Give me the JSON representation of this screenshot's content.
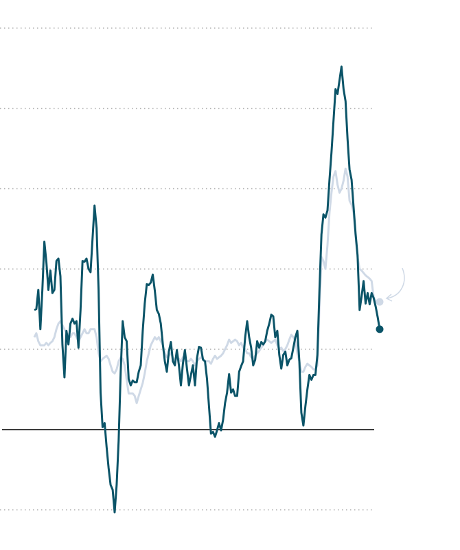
{
  "chart_data": {
    "type": "line",
    "ylim": [
      -1.5,
      5.35
    ],
    "yticks": [
      -1,
      0,
      1,
      2,
      3,
      4,
      5
    ],
    "grid": true,
    "series": [
      {
        "color": "#cfd9e6",
        "values": [
          1.15,
          1.2,
          1.1,
          1.05,
          1.05,
          1.05,
          1.08,
          1.05,
          1.08,
          1.1,
          1.15,
          1.25,
          1.32,
          1.35,
          1.3,
          1.25,
          1.2,
          1.18,
          1.15,
          1.2,
          1.2,
          1.15,
          1.1,
          1.15,
          1.2,
          1.25,
          1.2,
          1.2,
          1.25,
          1.25,
          1.25,
          1.15,
          0.95,
          0.85,
          0.88,
          0.9,
          0.92,
          0.88,
          0.8,
          0.72,
          0.7,
          0.75,
          0.85,
          0.9,
          0.88,
          0.8,
          0.62,
          0.45,
          0.45,
          0.45,
          0.42,
          0.33,
          0.42,
          0.5,
          0.58,
          0.7,
          0.85,
          0.95,
          1.05,
          1.1,
          1.15,
          1.12,
          1.15,
          1.1,
          1.05,
          0.95,
          0.9,
          0.92,
          0.95,
          0.9,
          0.85,
          0.9,
          0.88,
          0.85,
          0.9,
          0.88,
          0.85,
          0.85,
          0.88,
          0.85,
          0.8,
          0.85,
          0.88,
          0.9,
          0.88,
          0.85,
          0.85,
          0.85,
          0.82,
          0.88,
          0.92,
          0.88,
          0.9,
          0.92,
          0.95,
          1.0,
          1.05,
          1.12,
          1.08,
          1.1,
          1.12,
          1.1,
          1.05,
          1.08,
          1.02,
          1.0,
          0.95,
          0.95,
          0.9,
          0.88,
          0.92,
          0.95,
          0.98,
          1.02,
          1.05,
          1.1,
          1.12,
          1.1,
          1.08,
          1.1,
          1.12,
          1.05,
          1.0,
          1.02,
          0.98,
          1.0,
          1.05,
          1.12,
          1.18,
          1.15,
          1.1,
          0.95,
          0.85,
          0.72,
          0.72,
          0.78,
          0.82,
          0.8,
          0.78,
          0.75,
          0.75,
          0.8,
          1.5,
          2.15,
          2.1,
          2.0,
          2.3,
          2.7,
          2.95,
          3.15,
          3.22,
          3.05,
          2.95,
          3.0,
          3.1,
          3.25,
          3.15,
          2.85,
          2.8,
          2.7,
          2.4,
          2.15,
          2.0,
          1.98,
          1.95,
          1.92,
          1.9,
          1.88,
          1.85,
          1.65,
          1.6,
          1.6,
          1.59
        ]
      },
      {
        "color": "#0b5468",
        "values": [
          1.49,
          1.5,
          1.74,
          1.25,
          1.74,
          2.34,
          2.09,
          1.74,
          1.98,
          1.7,
          1.74,
          2.1,
          2.13,
          1.91,
          1.06,
          0.65,
          1.23,
          1.06,
          1.32,
          1.38,
          1.32,
          1.35,
          1.02,
          1.49,
          2.1,
          2.09,
          2.13,
          2.0,
          1.96,
          2.38,
          2.79,
          2.51,
          1.74,
          0.46,
          0.03,
          0.08,
          -0.22,
          -0.48,
          -0.69,
          -0.75,
          -1.03,
          -0.69,
          -0.14,
          0.72,
          1.35,
          1.15,
          1.1,
          0.63,
          0.55,
          0.61,
          0.59,
          0.59,
          0.72,
          0.8,
          1.23,
          1.57,
          1.81,
          1.8,
          1.83,
          1.93,
          1.73,
          1.49,
          1.44,
          1.32,
          1.06,
          0.85,
          0.72,
          0.97,
          1.09,
          0.85,
          0.8,
          0.99,
          0.8,
          0.55,
          0.82,
          0.99,
          0.76,
          0.55,
          0.68,
          0.8,
          0.55,
          0.89,
          1.03,
          1.02,
          0.87,
          0.85,
          0.63,
          0.29,
          -0.05,
          -0.03,
          -0.09,
          -0.01,
          0.08,
          -0.01,
          0.12,
          0.33,
          0.46,
          0.69,
          0.46,
          0.5,
          0.42,
          0.42,
          0.72,
          0.79,
          0.85,
          1.15,
          1.35,
          1.15,
          1.02,
          0.8,
          0.87,
          1.1,
          1.02,
          1.09,
          1.06,
          1.1,
          1.23,
          1.32,
          1.43,
          1.41,
          1.15,
          1.23,
          0.93,
          0.76,
          0.93,
          0.97,
          0.8,
          0.87,
          0.89,
          1.02,
          1.15,
          1.23,
          0.85,
          0.21,
          0.05,
          0.29,
          0.5,
          0.68,
          0.62,
          0.68,
          0.68,
          0.93,
          1.74,
          2.43,
          2.68,
          2.64,
          2.73,
          3.11,
          3.45,
          3.84,
          4.24,
          4.18,
          4.35,
          4.52,
          4.24,
          4.09,
          3.62,
          3.24,
          3.11,
          2.77,
          2.44,
          2.17,
          1.49,
          1.66,
          1.85,
          1.57,
          1.7,
          1.56,
          1.7,
          1.64,
          1.53,
          1.4,
          1.25
        ]
      }
    ]
  }
}
